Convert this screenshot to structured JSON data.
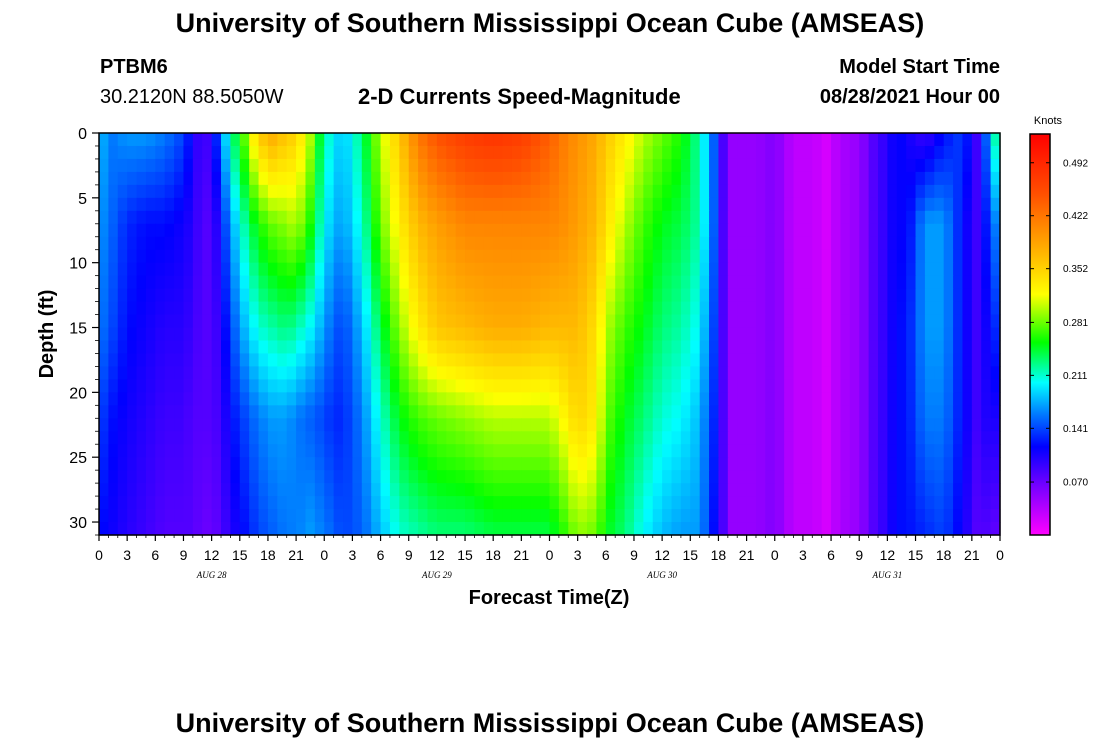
{
  "header": {
    "title": "University of Southern Mississippi Ocean Cube (AMSEAS)",
    "station_id": "PTBM6",
    "station_coords": "30.2120N  88.5050W",
    "subtitle": "2-D Currents Speed-Magnitude",
    "model_start_label": "Model Start Time",
    "model_start_value": "08/28/2021 Hour 00"
  },
  "footer": {
    "title": "University of Southern Mississippi Ocean Cube (AMSEAS)"
  },
  "chart_data": {
    "type": "heatmap",
    "title": "2-D Currents Speed-Magnitude",
    "xlabel": "Forecast Time(Z)",
    "ylabel": "Depth (ft)",
    "x_range_hours": [
      0,
      96
    ],
    "x_ticks": [
      "0",
      "3",
      "6",
      "9",
      "12",
      "15",
      "18",
      "21",
      "0",
      "3",
      "6",
      "9",
      "12",
      "15",
      "18",
      "21",
      "0",
      "3",
      "6",
      "9",
      "12",
      "15",
      "18",
      "21",
      "0",
      "3",
      "6",
      "9",
      "12",
      "15",
      "18",
      "21",
      "0"
    ],
    "day_labels": [
      "AUG 28",
      "AUG 29",
      "AUG 30",
      "AUG 31"
    ],
    "y_ticks": [
      0,
      5,
      10,
      15,
      20,
      25,
      30
    ],
    "y_range_ft": [
      0,
      31
    ],
    "colorbar": {
      "unit": "Knots",
      "range": [
        0.0,
        0.53
      ],
      "tick_labels": [
        "0.492",
        "0.422",
        "0.352",
        "0.281",
        "0.211",
        "0.141",
        "0.070"
      ],
      "tick_values": [
        0.492,
        0.422,
        0.352,
        0.281,
        0.211,
        0.141,
        0.07
      ]
    },
    "depths_ft": [
      0,
      7,
      15,
      22,
      31
    ],
    "times_h": [
      0,
      1.5,
      3,
      5,
      7,
      9,
      10,
      11,
      12,
      13,
      14,
      15.5,
      17,
      18.5,
      20,
      21,
      22.5,
      24,
      25,
      26,
      28,
      30,
      32,
      34,
      36,
      39,
      42,
      45,
      48,
      50,
      51,
      53,
      54,
      56,
      58,
      60,
      62,
      64,
      65.5,
      66,
      67.5,
      70,
      72,
      74,
      76,
      77.5,
      79,
      81,
      82.5,
      84,
      85,
      86,
      88,
      90,
      92,
      93.5,
      95,
      96
    ],
    "speed_knots": [
      [
        0.18,
        0.16,
        0.17,
        0.17,
        0.16,
        0.14,
        0.11,
        0.08,
        0.1,
        0.16,
        0.22,
        0.28,
        0.36,
        0.38,
        0.36,
        0.35,
        0.3,
        0.22,
        0.2,
        0.18,
        0.23,
        0.3,
        0.36,
        0.42,
        0.45,
        0.47,
        0.48,
        0.47,
        0.44,
        0.41,
        0.4,
        0.38,
        0.36,
        0.33,
        0.3,
        0.28,
        0.26,
        0.22,
        0.15,
        0.1,
        0.05,
        0.05,
        0.06,
        0.03,
        0.03,
        0.02,
        0.04,
        0.05,
        0.08,
        0.1,
        0.12,
        0.11,
        0.09,
        0.12,
        0.14,
        0.09,
        0.18,
        0.26
      ],
      [
        0.17,
        0.15,
        0.13,
        0.12,
        0.12,
        0.11,
        0.1,
        0.08,
        0.08,
        0.12,
        0.17,
        0.22,
        0.26,
        0.28,
        0.29,
        0.3,
        0.26,
        0.2,
        0.18,
        0.17,
        0.21,
        0.28,
        0.33,
        0.37,
        0.39,
        0.41,
        0.41,
        0.41,
        0.41,
        0.4,
        0.39,
        0.37,
        0.34,
        0.3,
        0.27,
        0.25,
        0.24,
        0.22,
        0.15,
        0.1,
        0.05,
        0.05,
        0.06,
        0.03,
        0.03,
        0.02,
        0.04,
        0.05,
        0.08,
        0.1,
        0.12,
        0.11,
        0.17,
        0.17,
        0.12,
        0.09,
        0.14,
        0.18
      ],
      [
        0.16,
        0.14,
        0.12,
        0.11,
        0.1,
        0.1,
        0.09,
        0.08,
        0.08,
        0.1,
        0.14,
        0.18,
        0.21,
        0.22,
        0.23,
        0.22,
        0.2,
        0.17,
        0.15,
        0.14,
        0.18,
        0.24,
        0.29,
        0.33,
        0.36,
        0.37,
        0.38,
        0.38,
        0.37,
        0.37,
        0.37,
        0.34,
        0.3,
        0.27,
        0.25,
        0.23,
        0.22,
        0.2,
        0.14,
        0.1,
        0.05,
        0.05,
        0.06,
        0.03,
        0.03,
        0.02,
        0.04,
        0.05,
        0.08,
        0.1,
        0.12,
        0.12,
        0.17,
        0.17,
        0.12,
        0.09,
        0.12,
        0.14
      ],
      [
        0.14,
        0.12,
        0.11,
        0.1,
        0.09,
        0.09,
        0.08,
        0.08,
        0.08,
        0.09,
        0.12,
        0.14,
        0.16,
        0.17,
        0.17,
        0.16,
        0.15,
        0.14,
        0.13,
        0.13,
        0.16,
        0.21,
        0.25,
        0.27,
        0.28,
        0.29,
        0.3,
        0.3,
        0.3,
        0.33,
        0.35,
        0.33,
        0.28,
        0.25,
        0.23,
        0.21,
        0.2,
        0.18,
        0.13,
        0.1,
        0.05,
        0.05,
        0.06,
        0.03,
        0.03,
        0.02,
        0.04,
        0.05,
        0.08,
        0.1,
        0.12,
        0.12,
        0.16,
        0.16,
        0.12,
        0.09,
        0.11,
        0.1
      ],
      [
        0.12,
        0.11,
        0.1,
        0.09,
        0.08,
        0.08,
        0.08,
        0.07,
        0.07,
        0.08,
        0.1,
        0.12,
        0.14,
        0.15,
        0.16,
        0.16,
        0.17,
        0.16,
        0.15,
        0.14,
        0.15,
        0.18,
        0.21,
        0.22,
        0.23,
        0.23,
        0.24,
        0.24,
        0.24,
        0.27,
        0.29,
        0.28,
        0.25,
        0.23,
        0.2,
        0.18,
        0.17,
        0.17,
        0.12,
        0.1,
        0.05,
        0.05,
        0.06,
        0.03,
        0.03,
        0.02,
        0.04,
        0.05,
        0.08,
        0.1,
        0.12,
        0.12,
        0.13,
        0.14,
        0.11,
        0.08,
        0.08,
        0.07
      ]
    ]
  }
}
